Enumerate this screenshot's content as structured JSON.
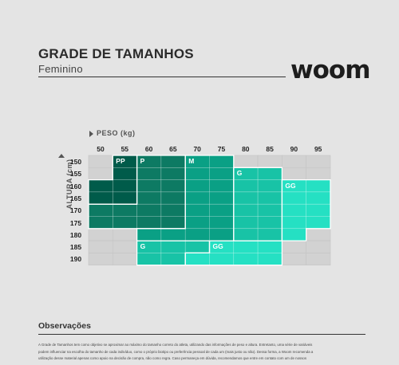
{
  "header": {
    "title": "GRADE DE TAMANHOS",
    "subtitle": "Feminino",
    "logo_text": "woom"
  },
  "axes": {
    "x_label": "PESO (kg)",
    "y_label": "ALTURA (cm)"
  },
  "chart_data": {
    "type": "heatmap",
    "x": [
      50,
      55,
      60,
      65,
      70,
      75,
      80,
      85,
      90,
      95
    ],
    "y": [
      150,
      155,
      160,
      165,
      170,
      175,
      180,
      185,
      190
    ],
    "size_labels": [
      "PP",
      "P",
      "M",
      "G",
      "GG",
      "G",
      "GG"
    ],
    "colors": {
      "PP": "#005b4a",
      "P": "#0d7a63",
      "M": "#0aa085",
      "G": "#18c3a6",
      "GG": "#25e0c3",
      "empty": "#d2d2d2"
    },
    "cells": [
      [
        "empty",
        "PP",
        "P",
        "P",
        "M",
        "M",
        "empty",
        "empty",
        "empty",
        "empty"
      ],
      [
        "empty",
        "PP",
        "P",
        "P",
        "M",
        "M",
        "G",
        "G",
        "empty",
        "empty"
      ],
      [
        "PP",
        "PP",
        "P",
        "P",
        "M",
        "M",
        "G",
        "G",
        "GG",
        "GG"
      ],
      [
        "PP",
        "PP",
        "P",
        "P",
        "M",
        "M",
        "G",
        "G",
        "GG",
        "GG"
      ],
      [
        "P",
        "P",
        "P",
        "P",
        "M",
        "M",
        "G",
        "G",
        "GG",
        "GG"
      ],
      [
        "P",
        "P",
        "P",
        "P",
        "M",
        "M",
        "G",
        "G",
        "GG",
        "GG"
      ],
      [
        "empty",
        "empty",
        "M",
        "M",
        "M",
        "M",
        "G",
        "G",
        "GG",
        "empty"
      ],
      [
        "empty",
        "empty",
        "G",
        "G",
        "G",
        "GG",
        "GG",
        "GG",
        "empty",
        "empty"
      ],
      [
        "empty",
        "empty",
        "G",
        "G",
        "GG",
        "GG",
        "GG",
        "GG",
        "empty",
        "empty"
      ]
    ]
  },
  "observacoes": {
    "title": "Observações",
    "lines": [
      "A Grade de Tamanhos tem como objetivo se aproximar ao máximo do tamanho correto do atleta, utilizando das informações de peso e altura. Entretanto, uma série de variáveis",
      "podem influenciar na escolha do tamanho de cada indivíduo, como o próprio biotipo ou preferência pessoal de cada um (mais justo ou não). Dessa forma, a Woom recomenda a",
      "utilização desse material apenas como apoio na decisão de compra, não como regra. Caso permaneça em dúvida, recomendamos que entre em contato com um de nossos"
    ]
  }
}
